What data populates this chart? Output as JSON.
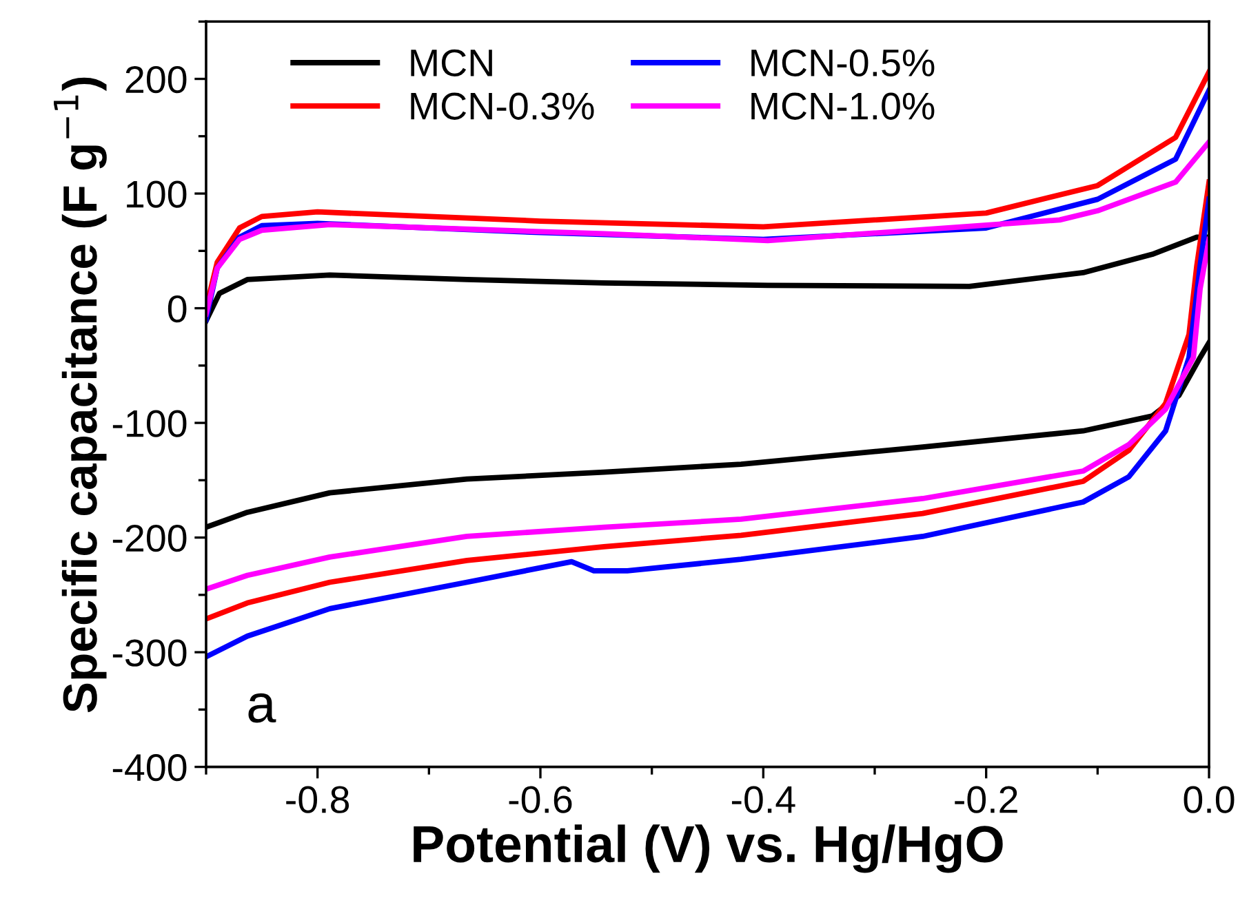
{
  "chart_data": {
    "type": "line",
    "xlabel": "Potential (V) vs. Hg/HgO",
    "ylabel": "Specific capacitance (F g$^{−1}$)",
    "xlim": [
      -0.9,
      0.0
    ],
    "ylim": [
      -400,
      250
    ],
    "xticks": [
      {
        "value": -0.8,
        "label": "-0.8"
      },
      {
        "value": -0.6,
        "label": "-0.6"
      },
      {
        "value": -0.4,
        "label": "-0.4"
      },
      {
        "value": -0.2,
        "label": "-0.2"
      },
      {
        "value": 0.0,
        "label": "0.0"
      }
    ],
    "yticks": [
      {
        "value": -400,
        "label": "-400"
      },
      {
        "value": -300,
        "label": "-300"
      },
      {
        "value": -200,
        "label": "-200"
      },
      {
        "value": -100,
        "label": "-100"
      },
      0,
      100,
      200
    ],
    "legend": "top left",
    "grid": false,
    "marker": "none",
    "line_style": "solid",
    "annotations": [
      "a"
    ],
    "series": [
      {
        "name": "MCN",
        "color": "#000000",
        "x": [
          -0.9,
          -0.888,
          -0.863,
          -0.789,
          -0.666,
          -0.543,
          -0.396,
          -0.215,
          -0.113,
          -0.051,
          -0.011,
          0.0
        ],
        "values": [
          -11,
          13,
          25,
          29,
          25,
          22,
          20,
          19,
          31,
          47,
          62,
          62
        ]
      },
      {
        "name": "MCN-0.3%",
        "color": "#ff0000",
        "x": [
          -0.9,
          -0.89,
          -0.87,
          -0.85,
          -0.8,
          -0.6,
          -0.4,
          -0.2,
          -0.1,
          -0.03,
          0.0
        ],
        "values": [
          0,
          40,
          70,
          80,
          84,
          76,
          71,
          83,
          107,
          149,
          206
        ]
      },
      {
        "name": "MCN-0.5%",
        "color": "#0000ff",
        "x": [
          -0.9,
          -0.89,
          -0.87,
          -0.85,
          -0.8,
          -0.6,
          -0.4,
          -0.2,
          -0.1,
          -0.03,
          0.0
        ],
        "values": [
          -10,
          35,
          62,
          72,
          74,
          66,
          60,
          70,
          95,
          130,
          190
        ]
      },
      {
        "name": "MCN-1.0%",
        "color": "#ff00ff",
        "x": [
          -0.9,
          -0.89,
          -0.87,
          -0.85,
          -0.789,
          -0.543,
          -0.396,
          -0.134,
          -0.1,
          -0.03,
          0.0
        ],
        "values": [
          -5,
          35,
          60,
          68,
          73,
          65,
          59,
          77,
          85,
          110,
          145
        ]
      },
      {
        "color": "#000000",
        "x": [
          -0.9,
          -0.863,
          -0.789,
          -0.666,
          -0.543,
          -0.42,
          -0.257,
          -0.113,
          -0.051,
          -0.027,
          -0.008,
          0.0
        ],
        "values": [
          -191,
          -178,
          -161,
          -149,
          -143,
          -136,
          -121,
          -107,
          -94,
          -76,
          -43,
          -30
        ]
      },
      {
        "color": "#ff0000",
        "x": [
          -0.9,
          -0.863,
          -0.789,
          -0.666,
          -0.543,
          -0.42,
          -0.257,
          -0.113,
          -0.072,
          -0.039,
          -0.018,
          -0.011,
          0.0
        ],
        "values": [
          -271,
          -257,
          -239,
          -220,
          -208,
          -198,
          -179,
          -151,
          -124,
          -83,
          -23,
          37,
          110
        ]
      },
      {
        "color": "#0000ff",
        "x": [
          -0.9,
          -0.863,
          -0.789,
          -0.666,
          -0.572,
          -0.552,
          -0.522,
          -0.42,
          -0.257,
          -0.113,
          -0.072,
          -0.039,
          -0.018,
          -0.008,
          0.0
        ],
        "values": [
          -304,
          -286,
          -262,
          -239,
          -221,
          -229,
          -229,
          -219,
          -199,
          -169,
          -147,
          -107,
          -43,
          37,
          95
        ]
      },
      {
        "color": "#ff00ff",
        "x": [
          -0.9,
          -0.863,
          -0.789,
          -0.666,
          -0.543,
          -0.42,
          -0.257,
          -0.113,
          -0.072,
          -0.039,
          -0.014,
          -0.008,
          0.0
        ],
        "values": [
          -245,
          -233,
          -217,
          -199,
          -191,
          -184,
          -166,
          -142,
          -119,
          -88,
          -43,
          17,
          60
        ]
      }
    ]
  }
}
